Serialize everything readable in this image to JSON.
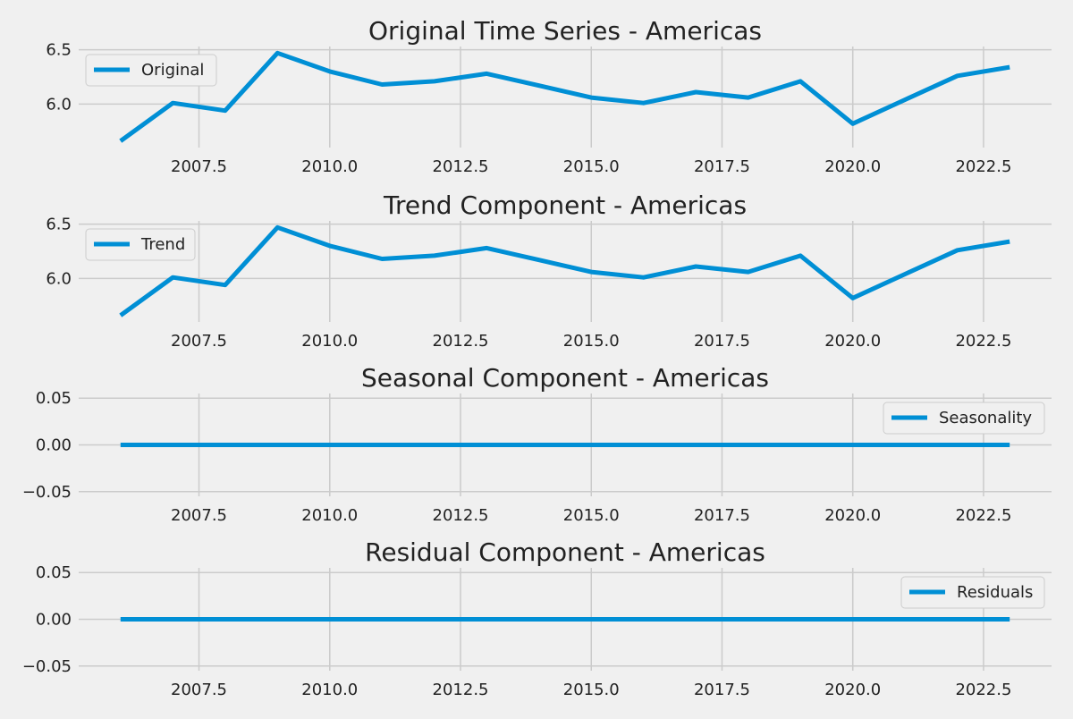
{
  "chart_data": [
    {
      "type": "line",
      "title": "Original Time Series - Americas",
      "x": [
        2006,
        2007,
        2008,
        2009,
        2010,
        2011,
        2012,
        2013,
        2014,
        2015,
        2016,
        2017,
        2018,
        2019,
        2020,
        2021,
        2022,
        2023
      ],
      "series": [
        {
          "name": "Original",
          "values": [
            5.66,
            6.01,
            5.94,
            6.47,
            6.3,
            6.18,
            6.21,
            6.28,
            6.17,
            6.06,
            6.01,
            6.11,
            6.06,
            6.21,
            5.82,
            6.04,
            6.26,
            6.34
          ]
        }
      ],
      "xlim": [
        2005.2,
        2023.8
      ],
      "ylim": [
        5.6,
        6.53
      ],
      "xticks": [
        2007.5,
        2010.0,
        2012.5,
        2015.0,
        2017.5,
        2020.0,
        2022.5
      ],
      "xtick_labels": [
        "2007.5",
        "2010.0",
        "2012.5",
        "2015.0",
        "2017.5",
        "2020.0",
        "2022.5"
      ],
      "yticks": [
        6.0,
        6.5
      ],
      "ytick_labels": [
        "6.0",
        "6.5"
      ],
      "legend": "upper left",
      "grid": true
    },
    {
      "type": "line",
      "title": "Trend Component - Americas",
      "x": [
        2006,
        2007,
        2008,
        2009,
        2010,
        2011,
        2012,
        2013,
        2014,
        2015,
        2016,
        2017,
        2018,
        2019,
        2020,
        2021,
        2022,
        2023
      ],
      "series": [
        {
          "name": "Trend",
          "values": [
            5.66,
            6.01,
            5.94,
            6.47,
            6.3,
            6.18,
            6.21,
            6.28,
            6.17,
            6.06,
            6.01,
            6.11,
            6.06,
            6.21,
            5.82,
            6.04,
            6.26,
            6.34
          ]
        }
      ],
      "xlim": [
        2005.2,
        2023.8
      ],
      "ylim": [
        5.6,
        6.53
      ],
      "xticks": [
        2007.5,
        2010.0,
        2012.5,
        2015.0,
        2017.5,
        2020.0,
        2022.5
      ],
      "xtick_labels": [
        "2007.5",
        "2010.0",
        "2012.5",
        "2015.0",
        "2017.5",
        "2020.0",
        "2022.5"
      ],
      "yticks": [
        6.0,
        6.5
      ],
      "ytick_labels": [
        "6.0",
        "6.5"
      ],
      "legend": "upper left",
      "grid": true
    },
    {
      "type": "line",
      "title": "Seasonal Component - Americas",
      "x": [
        2006,
        2007,
        2008,
        2009,
        2010,
        2011,
        2012,
        2013,
        2014,
        2015,
        2016,
        2017,
        2018,
        2019,
        2020,
        2021,
        2022,
        2023
      ],
      "series": [
        {
          "name": "Seasonality",
          "values": [
            0,
            0,
            0,
            0,
            0,
            0,
            0,
            0,
            0,
            0,
            0,
            0,
            0,
            0,
            0,
            0,
            0,
            0
          ]
        }
      ],
      "xlim": [
        2005.2,
        2023.8
      ],
      "ylim": [
        -0.055,
        0.055
      ],
      "xticks": [
        2007.5,
        2010.0,
        2012.5,
        2015.0,
        2017.5,
        2020.0,
        2022.5
      ],
      "xtick_labels": [
        "2007.5",
        "2010.0",
        "2012.5",
        "2015.0",
        "2017.5",
        "2020.0",
        "2022.5"
      ],
      "yticks": [
        -0.05,
        0.0,
        0.05
      ],
      "ytick_labels": [
        "−0.05",
        "0.00",
        "0.05"
      ],
      "legend": "upper right",
      "grid": true
    },
    {
      "type": "line",
      "title": "Residual Component - Americas",
      "x": [
        2006,
        2007,
        2008,
        2009,
        2010,
        2011,
        2012,
        2013,
        2014,
        2015,
        2016,
        2017,
        2018,
        2019,
        2020,
        2021,
        2022,
        2023
      ],
      "series": [
        {
          "name": "Residuals",
          "values": [
            0,
            0,
            0,
            0,
            0,
            0,
            0,
            0,
            0,
            0,
            0,
            0,
            0,
            0,
            0,
            0,
            0,
            0
          ]
        }
      ],
      "xlim": [
        2005.2,
        2023.8
      ],
      "ylim": [
        -0.055,
        0.055
      ],
      "xticks": [
        2007.5,
        2010.0,
        2012.5,
        2015.0,
        2017.5,
        2020.0,
        2022.5
      ],
      "xtick_labels": [
        "2007.5",
        "2010.0",
        "2012.5",
        "2015.0",
        "2017.5",
        "2020.0",
        "2022.5"
      ],
      "yticks": [
        -0.05,
        0.0,
        0.05
      ],
      "ytick_labels": [
        "−0.05",
        "0.00",
        "0.05"
      ],
      "legend": "upper right",
      "grid": true
    }
  ],
  "colors": {
    "line": "#008fd5",
    "grid": "#cbcbcb",
    "background": "#f0f0f0",
    "text": "#222222"
  }
}
